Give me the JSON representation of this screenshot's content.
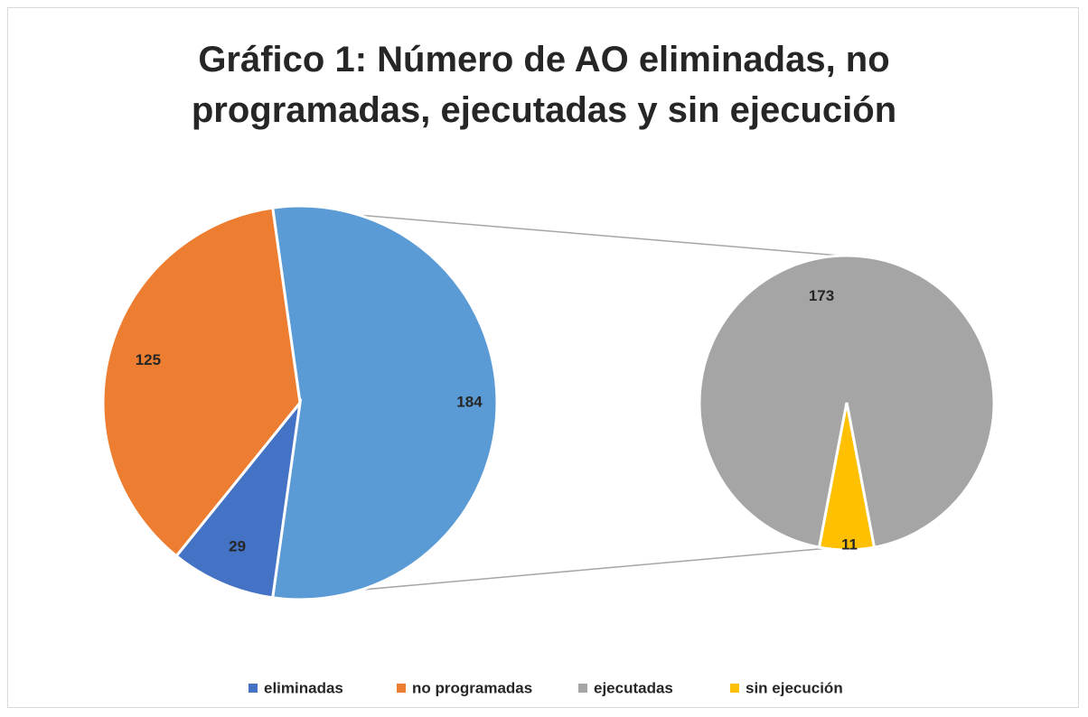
{
  "chart_data": {
    "type": "pie-of-pie",
    "title": "Gráfico 1: Número de AO eliminadas, no programadas, ejecutadas y sin ejecución",
    "categories": [
      "eliminadas",
      "no programadas",
      "ejecutadas",
      "sin ejecución"
    ],
    "values": [
      29,
      125,
      173,
      11
    ],
    "colors": [
      "#4472c4",
      "#ed7d31",
      "#a5a5a5",
      "#ffc000"
    ],
    "other_value": 184,
    "other_color": "#5b9bd5",
    "legend": "bottom"
  }
}
